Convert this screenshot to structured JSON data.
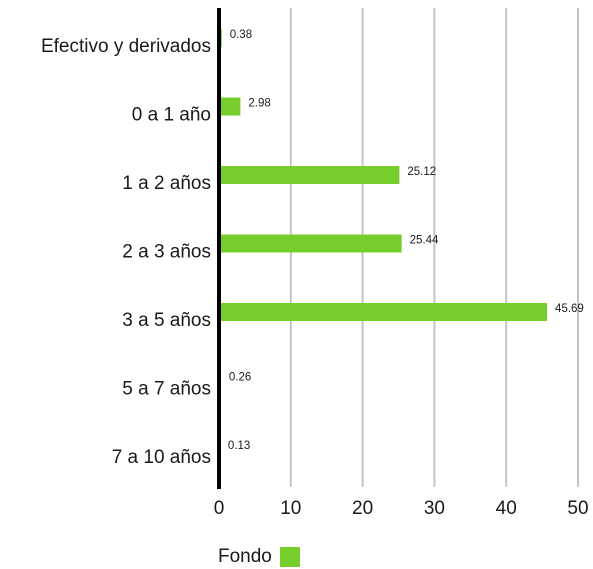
{
  "chart_data": {
    "type": "bar",
    "orientation": "horizontal",
    "categories": [
      "Efectivo y derivados",
      "0 a 1 año",
      "1 a 2 años",
      "2 a 3 años",
      "3 a 5 años",
      "5 a 7 años",
      "7 a 10 años"
    ],
    "series": [
      {
        "name": "Fondo",
        "values": [
          0.38,
          2.98,
          25.12,
          25.44,
          45.69,
          0.26,
          0.13
        ],
        "value_labels": [
          "0.38",
          "2.98",
          "25.12",
          "25.44",
          "45.69",
          "0.26",
          "0.13"
        ],
        "color": "#76cd2c"
      }
    ],
    "xlim": [
      0,
      50
    ],
    "xticks": [
      "0",
      "10",
      "20",
      "30",
      "40",
      "50"
    ],
    "grid": "vertical",
    "legend": "bottom-left"
  }
}
